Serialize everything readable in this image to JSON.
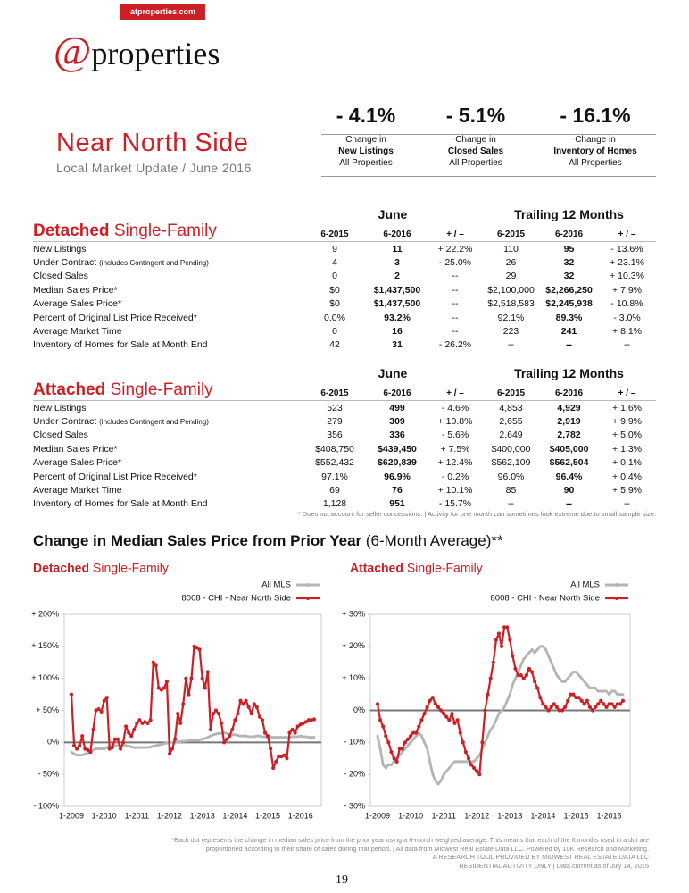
{
  "header": {
    "url": "atproperties.com",
    "logo_symbol": "@",
    "logo_name": "properties"
  },
  "title": "Near North Side",
  "subtitle": "Local Market Update / June 2016",
  "summary": [
    {
      "value": "- 4.1%",
      "lines": [
        "Change in",
        "New Listings",
        "All Properties"
      ]
    },
    {
      "value": "- 5.1%",
      "lines": [
        "Change in",
        "Closed Sales",
        "All Properties"
      ]
    },
    {
      "value": "- 16.1%",
      "lines": [
        "Change in",
        "Inventory of Homes",
        "All Properties"
      ]
    }
  ],
  "tables": [
    {
      "name_bold": "Detached",
      "name": "Single-Family",
      "groups": [
        "June",
        "Trailing 12 Months"
      ],
      "columns": [
        "6-2015",
        "6-2016",
        "+ / –",
        "6-2015",
        "6-2016",
        "+ / –"
      ],
      "rows": [
        {
          "label": "New Listings",
          "cells": [
            "9",
            "11",
            "+ 22.2%",
            "110",
            "95",
            "- 13.6%"
          ]
        },
        {
          "label": "Under Contract",
          "note": "(includes Contingent and Pending)",
          "cells": [
            "4",
            "3",
            "- 25.0%",
            "26",
            "32",
            "+ 23.1%"
          ]
        },
        {
          "label": "Closed Sales",
          "cells": [
            "0",
            "2",
            "--",
            "29",
            "32",
            "+ 10.3%"
          ]
        },
        {
          "label": "Median Sales Price*",
          "cells": [
            "$0",
            "$1,437,500",
            "--",
            "$2,100,000",
            "$2,266,250",
            "+ 7.9%"
          ]
        },
        {
          "label": "Average Sales Price*",
          "cells": [
            "$0",
            "$1,437,500",
            "--",
            "$2,518,583",
            "$2,245,938",
            "- 10.8%"
          ]
        },
        {
          "label": "Percent of Original List Price Received*",
          "cells": [
            "0.0%",
            "93.2%",
            "--",
            "92.1%",
            "89.3%",
            "- 3.0%"
          ]
        },
        {
          "label": "Average Market Time",
          "cells": [
            "0",
            "16",
            "--",
            "223",
            "241",
            "+ 8.1%"
          ]
        },
        {
          "label": "Inventory of Homes for Sale at Month End",
          "cells": [
            "42",
            "31",
            "- 26.2%",
            "--",
            "--",
            "--"
          ]
        }
      ]
    },
    {
      "name_bold": "Attached",
      "name": "Single-Family",
      "groups": [
        "June",
        "Trailing 12 Months"
      ],
      "columns": [
        "6-2015",
        "6-2016",
        "+ / –",
        "6-2015",
        "6-2016",
        "+ / –"
      ],
      "rows": [
        {
          "label": "New Listings",
          "cells": [
            "523",
            "499",
            "- 4.6%",
            "4,853",
            "4,929",
            "+ 1.6%"
          ]
        },
        {
          "label": "Under Contract",
          "note": "(includes Contingent and Pending)",
          "cells": [
            "279",
            "309",
            "+ 10.8%",
            "2,655",
            "2,919",
            "+ 9.9%"
          ]
        },
        {
          "label": "Closed Sales",
          "cells": [
            "356",
            "336",
            "- 5.6%",
            "2,649",
            "2,782",
            "+ 5.0%"
          ]
        },
        {
          "label": "Median Sales Price*",
          "cells": [
            "$408,750",
            "$439,450",
            "+ 7.5%",
            "$400,000",
            "$405,000",
            "+ 1.3%"
          ]
        },
        {
          "label": "Average Sales Price*",
          "cells": [
            "$552,432",
            "$620,839",
            "+ 12.4%",
            "$562,109",
            "$562,504",
            "+ 0.1%"
          ]
        },
        {
          "label": "Percent of Original List Price Received*",
          "cells": [
            "97.1%",
            "96.9%",
            "- 0.2%",
            "96.0%",
            "96.4%",
            "+ 0.4%"
          ]
        },
        {
          "label": "Average Market Time",
          "cells": [
            "69",
            "76",
            "+ 10.1%",
            "85",
            "90",
            "+ 5.9%"
          ]
        },
        {
          "label": "Inventory of Homes for Sale at Month End",
          "cells": [
            "1,128",
            "951",
            "- 15.7%",
            "--",
            "--",
            "--"
          ]
        }
      ]
    }
  ],
  "table_note": "* Does not account for seller concessions.  |  Activity for one month can sometimes look extreme due to small sample size.",
  "section_title": "Change in Median Sales Price from Prior Year",
  "section_title_suffix": "(6-Month Average)**",
  "chart_data": [
    {
      "type": "line",
      "title": "Detached",
      "title_suffix": "Single-Family",
      "legend": "top-right",
      "categories": [
        "1-2009",
        null,
        null,
        null,
        null,
        null,
        null,
        null,
        null,
        null,
        null,
        null,
        "1-2010",
        null,
        null,
        null,
        null,
        null,
        null,
        null,
        null,
        null,
        null,
        null,
        "1-2011",
        null,
        null,
        null,
        null,
        null,
        null,
        null,
        null,
        null,
        null,
        null,
        "1-2012",
        null,
        null,
        null,
        null,
        null,
        null,
        null,
        null,
        null,
        null,
        null,
        "1-2013",
        null,
        null,
        null,
        null,
        null,
        null,
        null,
        null,
        null,
        null,
        null,
        "1-2014",
        null,
        null,
        null,
        null,
        null,
        null,
        null,
        null,
        null,
        null,
        null,
        "1-2015",
        null,
        null,
        null,
        null,
        null,
        null,
        null,
        null,
        null,
        null,
        null,
        "1-2016",
        null,
        null,
        null,
        null,
        null
      ],
      "ylim": [
        -100,
        200
      ],
      "yticks": [
        {
          "value": -100,
          "label": "- 100%"
        },
        {
          "value": -50,
          "label": "- 50%"
        },
        {
          "value": 0,
          "label": "0%"
        },
        {
          "value": 50,
          "label": "+ 50%"
        },
        {
          "value": 100,
          "label": "+ 100%"
        },
        {
          "value": 150,
          "label": "+ 150%"
        },
        {
          "value": 200,
          "label": "+ 200%"
        }
      ],
      "series": [
        {
          "name": "All MLS",
          "color": "#b5b5b5",
          "values": [
            -15,
            -18,
            -20,
            -20,
            -20,
            -18,
            -17,
            -15,
            -12,
            -10,
            -10,
            -10,
            -10,
            -8,
            -6,
            -5,
            -5,
            -5,
            -5,
            -4,
            -5,
            -6,
            -7,
            -8,
            -8,
            -8,
            -8,
            -8,
            -8,
            -7,
            -6,
            -5,
            -4,
            -3,
            -2,
            -1,
            0,
            0,
            0,
            1,
            1,
            2,
            2,
            3,
            3,
            3,
            3,
            4,
            5,
            6,
            8,
            10,
            12,
            13,
            14,
            14,
            15,
            14,
            13,
            12,
            12,
            11,
            10,
            10,
            10,
            9,
            9,
            9,
            10,
            10,
            9,
            9,
            8,
            8,
            8,
            8,
            8,
            8,
            8,
            8,
            8,
            9,
            9,
            9,
            10,
            9,
            9,
            8,
            8,
            8
          ]
        },
        {
          "name": "8008 - CHI - Near North Side",
          "color": "#cc2027",
          "values": [
            75,
            -5,
            -10,
            -5,
            10,
            -10,
            -12,
            -15,
            20,
            50,
            52,
            48,
            65,
            70,
            -10,
            -8,
            5,
            5,
            -10,
            0,
            25,
            15,
            10,
            20,
            30,
            35,
            30,
            32,
            30,
            35,
            125,
            120,
            85,
            82,
            85,
            95,
            -18,
            -10,
            5,
            45,
            30,
            60,
            100,
            75,
            100,
            150,
            148,
            145,
            100,
            85,
            110,
            20,
            45,
            50,
            45,
            30,
            0,
            5,
            10,
            20,
            35,
            45,
            65,
            60,
            65,
            55,
            45,
            60,
            55,
            40,
            35,
            15,
            10,
            -10,
            -40,
            -30,
            -22,
            -22,
            -20,
            -25,
            15,
            20,
            15,
            25,
            28,
            30,
            32,
            35,
            35,
            36
          ]
        }
      ]
    },
    {
      "type": "line",
      "title": "Attached",
      "title_suffix": "Single-Family",
      "legend": "top-right",
      "categories": [
        "1-2009",
        null,
        null,
        null,
        null,
        null,
        null,
        null,
        null,
        null,
        null,
        null,
        "1-2010",
        null,
        null,
        null,
        null,
        null,
        null,
        null,
        null,
        null,
        null,
        null,
        "1-2011",
        null,
        null,
        null,
        null,
        null,
        null,
        null,
        null,
        null,
        null,
        null,
        "1-2012",
        null,
        null,
        null,
        null,
        null,
        null,
        null,
        null,
        null,
        null,
        null,
        "1-2013",
        null,
        null,
        null,
        null,
        null,
        null,
        null,
        null,
        null,
        null,
        null,
        "1-2014",
        null,
        null,
        null,
        null,
        null,
        null,
        null,
        null,
        null,
        null,
        null,
        "1-2015",
        null,
        null,
        null,
        null,
        null,
        null,
        null,
        null,
        null,
        null,
        null,
        "1-2016",
        null,
        null,
        null,
        null,
        null
      ],
      "ylim": [
        -30,
        30
      ],
      "yticks": [
        {
          "value": -30,
          "label": "- 30%"
        },
        {
          "value": -20,
          "label": "- 20%"
        },
        {
          "value": -10,
          "label": "- 10%"
        },
        {
          "value": 0,
          "label": "0%"
        },
        {
          "value": 10,
          "label": "+ 10%"
        },
        {
          "value": 20,
          "label": "+ 20%"
        },
        {
          "value": 30,
          "label": "+ 30%"
        }
      ],
      "series": [
        {
          "name": "All MLS",
          "color": "#b5b5b5",
          "values": [
            -8,
            -12,
            -17,
            -18,
            -17,
            -17,
            -16,
            -15,
            -14,
            -13,
            -12,
            -11,
            -10,
            -9,
            -8,
            -7,
            -8,
            -10,
            -12,
            -16,
            -20,
            -22,
            -23,
            -22,
            -20,
            -19,
            -18,
            -17,
            -16,
            -16,
            -16,
            -16,
            -16,
            -16,
            -16,
            -16,
            -15,
            -14,
            -12,
            -10,
            -8,
            -6,
            -5,
            -3,
            -1,
            0,
            1,
            3,
            5,
            8,
            10,
            12,
            14,
            16,
            17,
            18,
            19,
            18,
            19,
            20,
            20,
            19,
            17,
            15,
            13,
            11,
            10,
            9,
            9,
            10,
            11,
            12,
            12,
            11,
            10,
            9,
            8,
            7,
            7,
            7,
            6,
            6,
            6,
            6,
            5,
            6,
            6,
            5,
            5,
            5
          ]
        },
        {
          "name": "8008 - CHI - Near North Side",
          "color": "#cc2027",
          "values": [
            2,
            -3,
            -5,
            -8,
            -10,
            -13,
            -15,
            -16,
            -12,
            -12,
            -10,
            -9,
            -8,
            -7,
            -7,
            -5,
            -3,
            -1,
            1,
            3,
            4,
            2,
            1,
            0,
            -1,
            -2,
            -3,
            -1,
            -4,
            -3,
            -7,
            -10,
            -13,
            -15,
            -17,
            -18,
            -19,
            -20,
            -10,
            0,
            5,
            10,
            15,
            22,
            24,
            20,
            26,
            26,
            22,
            17,
            13,
            11,
            11,
            10,
            11,
            13,
            12,
            9,
            7,
            4,
            2,
            1,
            0,
            1,
            2,
            1,
            0,
            0,
            1,
            3,
            5,
            5,
            4,
            4,
            3,
            2,
            3,
            1,
            0,
            1,
            2,
            3,
            2,
            1,
            2,
            2,
            1,
            2,
            2,
            3
          ]
        }
      ]
    }
  ],
  "footer": {
    "lines": [
      "*Each dot represents the change in median sales price from the prior year using a 6-month weighted average. This means that each of the 6 months used in a dot are",
      "proportioned according to their share of sales during that period.  |  All data from Midwest Real Estate Data LLC. Powered by 10K Research and Marketing.",
      "A RESEARCH TOOL PROVIDED BY MIDWEST REAL ESTATE DATA LLC",
      "RESIDENTIAL ACTIVITY ONLY  |  Data current as of July 14, 2016"
    ],
    "page": "19"
  }
}
